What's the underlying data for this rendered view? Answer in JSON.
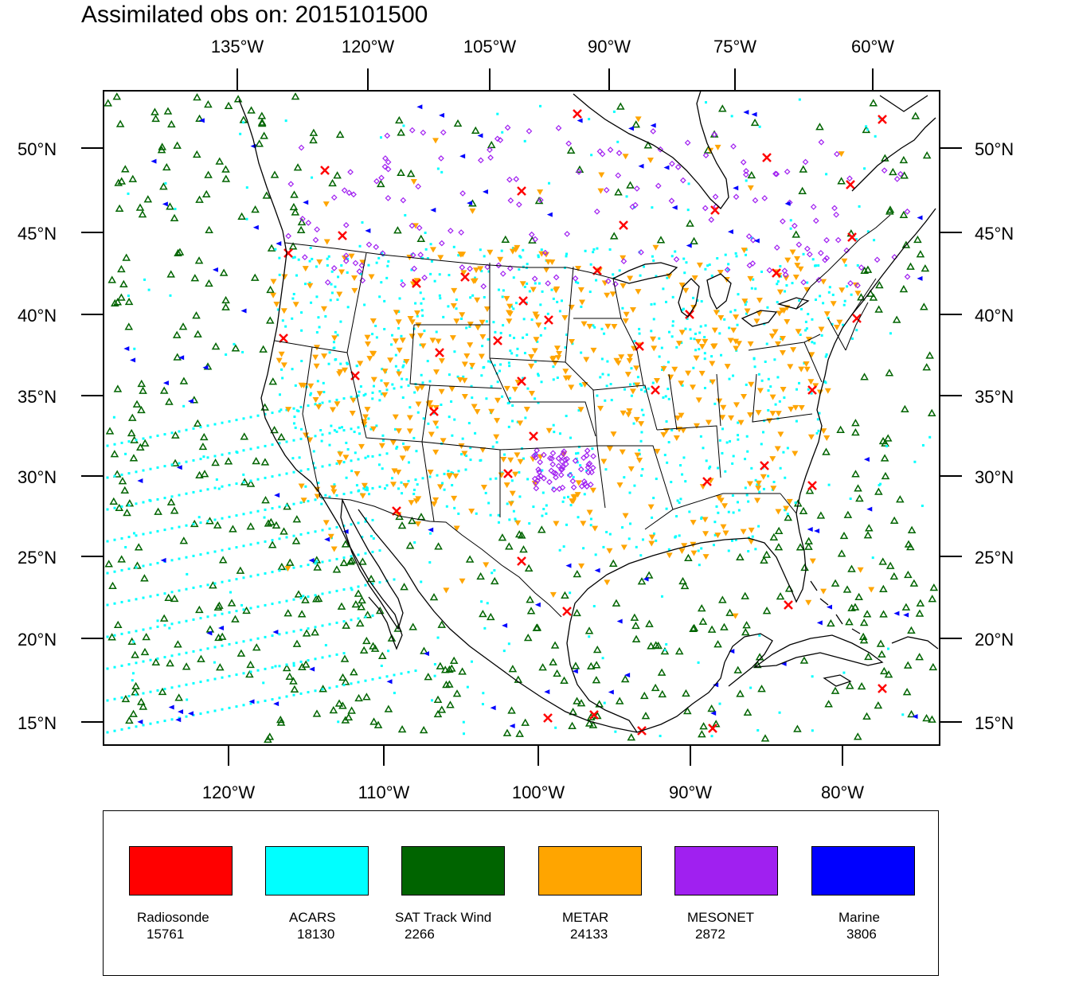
{
  "title": "Assimilated obs on: 2015101500",
  "top_axis_labels": [
    "135°W",
    "120°W",
    "105°W",
    "90°W",
    "75°W",
    "60°W"
  ],
  "bottom_axis_labels": [
    "120°W",
    "110°W",
    "100°W",
    "90°W",
    "80°W"
  ],
  "lat_labels": [
    "50°N",
    "45°N",
    "40°N",
    "35°N",
    "30°N",
    "25°N",
    "20°N",
    "15°N"
  ],
  "legend": [
    {
      "label": "Radiosonde",
      "count": "15761",
      "color": "#ff0000"
    },
    {
      "label": "ACARS",
      "count": "18130",
      "color": "#00ffff"
    },
    {
      "label": "SAT Track Wind",
      "count": "2266",
      "color": "#006400"
    },
    {
      "label": "METAR",
      "count": "24133",
      "color": "#ffa500"
    },
    {
      "label": "MESONET",
      "count": "2872",
      "color": "#a020f0"
    },
    {
      "label": "Marine",
      "count": "3806",
      "color": "#0000ff"
    }
  ],
  "colors": {
    "radiosonde": "#ff0000",
    "acars": "#00ffff",
    "sat_track_wind": "#006400",
    "metar": "#ffa500",
    "mesonet": "#a020f0",
    "marine": "#0000ff",
    "coastline": "#000000"
  }
}
